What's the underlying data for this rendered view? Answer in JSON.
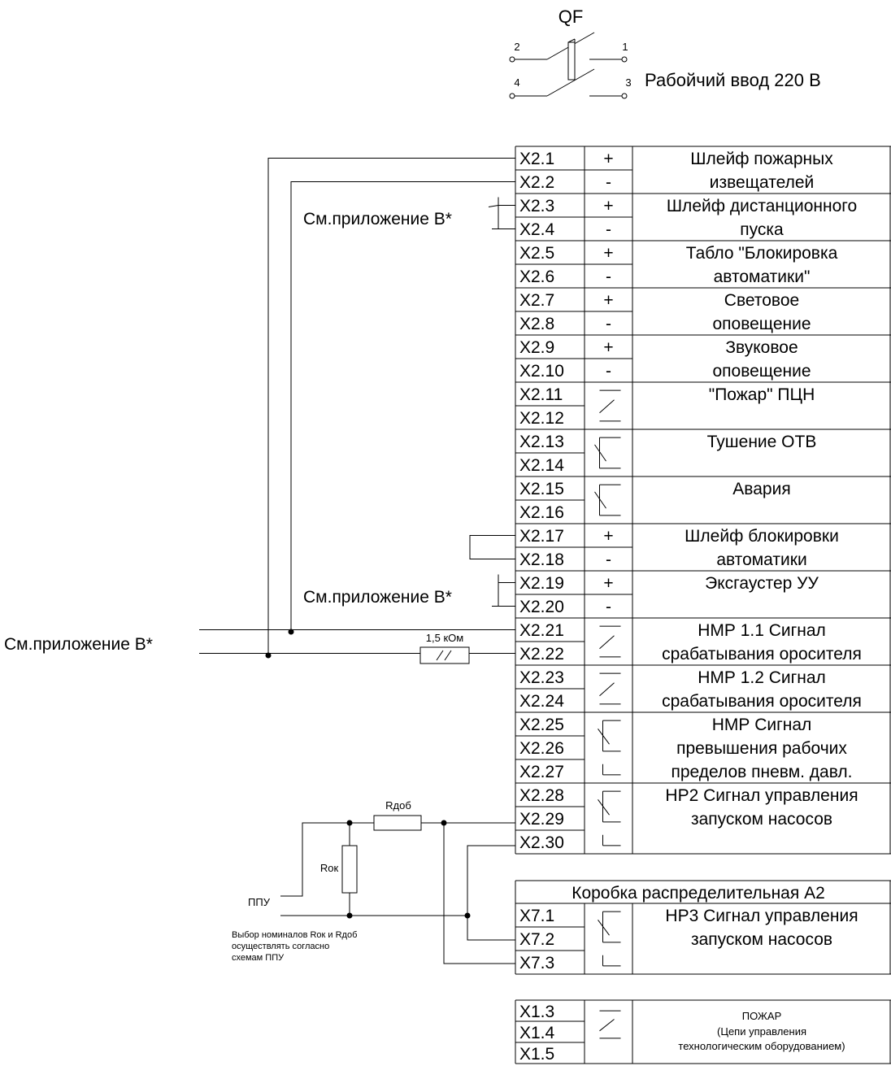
{
  "breaker": {
    "label": "QF",
    "pin_top_left": "2",
    "pin_top_right": "1",
    "pin_bottom_left": "4",
    "pin_bottom_right": "3",
    "input_label": "Рабойчий ввод 220 В"
  },
  "refs": {
    "ref_upper": "См.приложение В*",
    "ref_middle": "См.приложение В*",
    "ref_left": "См.приложение В*"
  },
  "resistor_label": "1,5 кОм",
  "ppu": {
    "label": "ППУ",
    "r_add": "Rдоб",
    "r_ok": "Rок",
    "note_line1": "Выбор номиналов Rок и Rдоб",
    "note_line2": "осуществлять согласно",
    "note_line3": "схемам ППУ"
  },
  "x2": {
    "rows": [
      {
        "term": "X2.1",
        "pol": "+"
      },
      {
        "term": "X2.2",
        "pol": "-"
      },
      {
        "term": "X2.3",
        "pol": "+"
      },
      {
        "term": "X2.4",
        "pol": "-"
      },
      {
        "term": "X2.5",
        "pol": "+"
      },
      {
        "term": "X2.6",
        "pol": "-"
      },
      {
        "term": "X2.7",
        "pol": "+"
      },
      {
        "term": "X2.8",
        "pol": "-"
      },
      {
        "term": "X2.9",
        "pol": "+"
      },
      {
        "term": "X2.10",
        "pol": "-"
      },
      {
        "term": "X2.11",
        "pol": ""
      },
      {
        "term": "X2.12",
        "pol": ""
      },
      {
        "term": "X2.13",
        "pol": ""
      },
      {
        "term": "X2.14",
        "pol": ""
      },
      {
        "term": "X2.15",
        "pol": ""
      },
      {
        "term": "X2.16",
        "pol": ""
      },
      {
        "term": "X2.17",
        "pol": "+"
      },
      {
        "term": "X2.18",
        "pol": "-"
      },
      {
        "term": "X2.19",
        "pol": "+"
      },
      {
        "term": "X2.20",
        "pol": "-"
      },
      {
        "term": "X2.21",
        "pol": ""
      },
      {
        "term": "X2.22",
        "pol": ""
      },
      {
        "term": "X2.23",
        "pol": ""
      },
      {
        "term": "X2.24",
        "pol": ""
      },
      {
        "term": "X2.25",
        "pol": ""
      },
      {
        "term": "X2.26",
        "pol": ""
      },
      {
        "term": "X2.27",
        "pol": ""
      },
      {
        "term": "X2.28",
        "pol": ""
      },
      {
        "term": "X2.29",
        "pol": ""
      },
      {
        "term": "X2.30",
        "pol": ""
      }
    ],
    "groups": [
      {
        "lines": [
          "Шлейф пожарных",
          "извещателей"
        ]
      },
      {
        "lines": [
          "Шлейф дистанционного",
          "пуска"
        ]
      },
      {
        "lines": [
          "Табло \"Блокировка",
          "автоматики\""
        ]
      },
      {
        "lines": [
          "Световое",
          "оповещение"
        ]
      },
      {
        "lines": [
          "Звуковое",
          "оповещение"
        ]
      },
      {
        "lines": [
          "\"Пожар\" ПЦН"
        ]
      },
      {
        "lines": [
          "Тушение ОТВ"
        ]
      },
      {
        "lines": [
          "Авария"
        ]
      },
      {
        "lines": [
          "Шлейф блокировки",
          "автоматики"
        ]
      },
      {
        "lines": [
          "Эксгаустер УУ"
        ]
      },
      {
        "lines": [
          "НМР 1.1 Сигнал",
          "срабатывания оросителя"
        ]
      },
      {
        "lines": [
          "НМР 1.2 Сигнал",
          "срабатывания оросителя"
        ]
      },
      {
        "lines": [
          "НМР Сигнал",
          "превышения рабочих",
          "пределов пневм. давл."
        ]
      },
      {
        "lines": [
          "НР2 Сигнал управления",
          "запуском насосов"
        ]
      }
    ]
  },
  "a2": {
    "title": "Коробка распределительная А2",
    "rows": [
      "X7.1",
      "X7.2",
      "X7.3"
    ],
    "desc_lines": [
      "НР3 Сигнал управления",
      "запуском насосов"
    ]
  },
  "x1": {
    "rows": [
      "X1.3",
      "X1.4",
      "X1.5"
    ],
    "desc_lines": [
      "ПОЖАР",
      "(Цепи управления",
      "технологическим оборудованием)"
    ]
  }
}
